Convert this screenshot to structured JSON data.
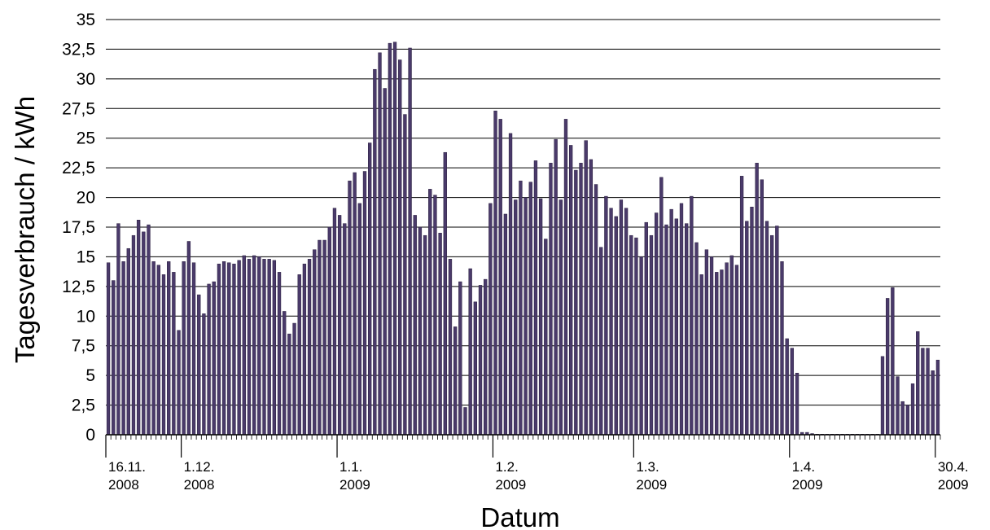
{
  "chart_data": {
    "type": "bar",
    "title": "",
    "xlabel": "Datum",
    "ylabel": "Tagesverbrauch / kWh",
    "ylim": [
      0,
      35
    ],
    "yticks": [
      0,
      2.5,
      5,
      7.5,
      10,
      12.5,
      15,
      17.5,
      20,
      22.5,
      25,
      27.5,
      30,
      32.5,
      35
    ],
    "ytick_labels": [
      "0",
      "2,5",
      "5",
      "7,5",
      "10",
      "12,5",
      "15",
      "17,5",
      "20",
      "22,5",
      "25",
      "27,5",
      "30",
      "32,5",
      "35"
    ],
    "grid": "horizontal",
    "bar_color": "#4a3a6a",
    "x_range": [
      "2008-11-16",
      "2009-04-30"
    ],
    "xticks": [
      {
        "date": "2008-11-16",
        "line1": "16.11.",
        "line2": "2008"
      },
      {
        "date": "2008-12-01",
        "line1": "1.12.",
        "line2": "2008"
      },
      {
        "date": "2009-01-01",
        "line1": "1.1.",
        "line2": "2009"
      },
      {
        "date": "2009-02-01",
        "line1": "1.2.",
        "line2": "2009"
      },
      {
        "date": "2009-03-01",
        "line1": "1.3.",
        "line2": "2009"
      },
      {
        "date": "2009-04-01",
        "line1": "1.4.",
        "line2": "2009"
      },
      {
        "date": "2009-04-30",
        "line1": "30.4.",
        "line2": "2009"
      }
    ],
    "series": [
      {
        "x": [
          "2008-11-16",
          "2008-11-17",
          "2008-11-18",
          "2008-11-19",
          "2008-11-20",
          "2008-11-21",
          "2008-11-22",
          "2008-11-23",
          "2008-11-24",
          "2008-11-25",
          "2008-11-26",
          "2008-11-27",
          "2008-11-28",
          "2008-11-29",
          "2008-11-30",
          "2008-12-01",
          "2008-12-02",
          "2008-12-03",
          "2008-12-04",
          "2008-12-05",
          "2008-12-06",
          "2008-12-07",
          "2008-12-08",
          "2008-12-09",
          "2008-12-10",
          "2008-12-11",
          "2008-12-12",
          "2008-12-13",
          "2008-12-14",
          "2008-12-15",
          "2008-12-16",
          "2008-12-17",
          "2008-12-18",
          "2008-12-19",
          "2008-12-20",
          "2008-12-21",
          "2008-12-22",
          "2008-12-23",
          "2008-12-24",
          "2008-12-25",
          "2008-12-26",
          "2008-12-27",
          "2008-12-28",
          "2008-12-29",
          "2008-12-30",
          "2008-12-31",
          "2009-01-01",
          "2009-01-02",
          "2009-01-03",
          "2009-01-04",
          "2009-01-05",
          "2009-01-06",
          "2009-01-07",
          "2009-01-08",
          "2009-01-09",
          "2009-01-10",
          "2009-01-11",
          "2009-01-12",
          "2009-01-13",
          "2009-01-14",
          "2009-01-15",
          "2009-01-16",
          "2009-01-17",
          "2009-01-18",
          "2009-01-19",
          "2009-01-20",
          "2009-01-21",
          "2009-01-22",
          "2009-01-23",
          "2009-01-24",
          "2009-01-25",
          "2009-01-26",
          "2009-01-27",
          "2009-01-28",
          "2009-01-29",
          "2009-01-30",
          "2009-01-31",
          "2009-02-01",
          "2009-02-02",
          "2009-02-03",
          "2009-02-04",
          "2009-02-05",
          "2009-02-06",
          "2009-02-07",
          "2009-02-08",
          "2009-02-09",
          "2009-02-10",
          "2009-02-11",
          "2009-02-12",
          "2009-02-13",
          "2009-02-14",
          "2009-02-15",
          "2009-02-16",
          "2009-02-17",
          "2009-02-18",
          "2009-02-19",
          "2009-02-20",
          "2009-02-21",
          "2009-02-22",
          "2009-02-23",
          "2009-02-24",
          "2009-02-25",
          "2009-02-26",
          "2009-02-27",
          "2009-02-28",
          "2009-03-01",
          "2009-03-02",
          "2009-03-03",
          "2009-03-04",
          "2009-03-05",
          "2009-03-06",
          "2009-03-07",
          "2009-03-08",
          "2009-03-09",
          "2009-03-10",
          "2009-03-11",
          "2009-03-12",
          "2009-03-13",
          "2009-03-14",
          "2009-03-15",
          "2009-03-16",
          "2009-03-17",
          "2009-03-18",
          "2009-03-19",
          "2009-03-20",
          "2009-03-21",
          "2009-03-22",
          "2009-03-23",
          "2009-03-24",
          "2009-03-25",
          "2009-03-26",
          "2009-03-27",
          "2009-03-28",
          "2009-03-29",
          "2009-03-30",
          "2009-03-31",
          "2009-04-01",
          "2009-04-02",
          "2009-04-03",
          "2009-04-04",
          "2009-04-05",
          "2009-04-06",
          "2009-04-07",
          "2009-04-08",
          "2009-04-09",
          "2009-04-10",
          "2009-04-11",
          "2009-04-12",
          "2009-04-13",
          "2009-04-14",
          "2009-04-15",
          "2009-04-16",
          "2009-04-17",
          "2009-04-18",
          "2009-04-19",
          "2009-04-20",
          "2009-04-21",
          "2009-04-22",
          "2009-04-23",
          "2009-04-24",
          "2009-04-25",
          "2009-04-26",
          "2009-04-27",
          "2009-04-28",
          "2009-04-29",
          "2009-04-30"
        ],
        "values": [
          14.5,
          13.0,
          17.8,
          14.6,
          15.7,
          16.8,
          18.1,
          17.1,
          17.7,
          14.6,
          14.3,
          13.5,
          14.6,
          13.7,
          8.8,
          14.6,
          16.3,
          14.5,
          11.8,
          10.2,
          12.7,
          12.9,
          14.4,
          14.6,
          14.5,
          14.4,
          14.7,
          15.1,
          14.8,
          15.1,
          15.0,
          14.8,
          14.8,
          14.7,
          13.7,
          10.4,
          8.5,
          9.4,
          13.5,
          14.4,
          14.8,
          15.6,
          16.4,
          16.4,
          17.5,
          19.1,
          18.5,
          17.8,
          21.4,
          22.1,
          19.5,
          22.2,
          24.6,
          30.8,
          32.2,
          29.2,
          33.0,
          33.1,
          31.6,
          27.0,
          32.6,
          18.5,
          17.5,
          16.8,
          20.7,
          20.2,
          17.0,
          23.8,
          14.8,
          9.1,
          12.9,
          2.3,
          14.0,
          11.2,
          12.6,
          13.1,
          19.5,
          27.3,
          26.6,
          18.6,
          25.4,
          19.8,
          21.4,
          20.0,
          21.3,
          23.1,
          19.9,
          16.5,
          22.9,
          24.9,
          19.8,
          26.6,
          24.4,
          22.3,
          22.9,
          24.8,
          23.2,
          21.1,
          15.8,
          20.1,
          19.1,
          18.4,
          19.8,
          19.1,
          16.8,
          16.6,
          15.0,
          17.9,
          16.8,
          18.7,
          21.7,
          17.7,
          19.0,
          18.2,
          19.5,
          17.8,
          20.1,
          16.2,
          13.5,
          15.6,
          15.0,
          13.7,
          13.9,
          14.5,
          15.1,
          14.3,
          21.8,
          18.0,
          19.2,
          22.9,
          21.5,
          18.0,
          16.8,
          17.6,
          14.6,
          8.1,
          7.3,
          5.2,
          0.2,
          0.2,
          0.1,
          0.05,
          0.05,
          0.05,
          0.05,
          0.05,
          0.05,
          0.05,
          0.05,
          0.05,
          0.05,
          0.05,
          0.05,
          0.05,
          6.6,
          11.5,
          12.4,
          4.9,
          2.8,
          2.5,
          4.3,
          8.7,
          7.3,
          7.3,
          5.4,
          6.3
        ]
      }
    ]
  }
}
